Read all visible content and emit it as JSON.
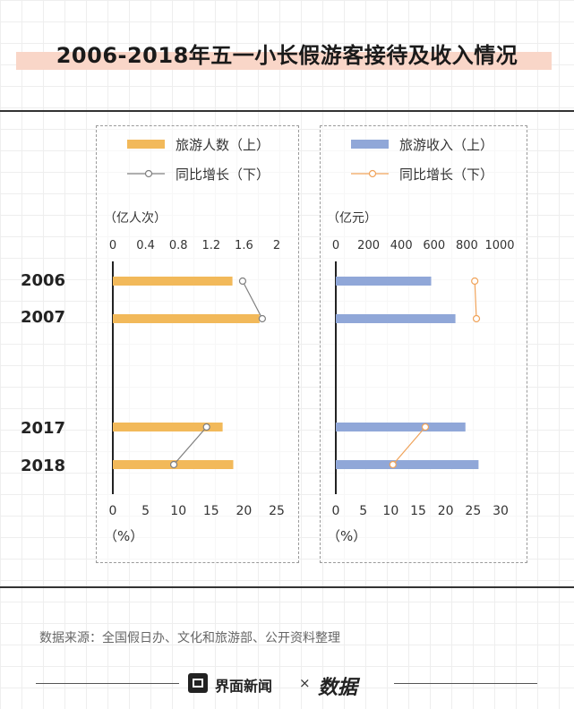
{
  "title": "2006-2018年五一小长假游客接待及收入情况",
  "source": "数据来源：全国假日办、文化和旅游部、公开资料整理",
  "footer": {
    "brand": "界面新闻",
    "times": "×",
    "partner": "数据"
  },
  "chart_data": [
    {
      "type": "bar",
      "categories": [
        "2006",
        "2007",
        "2017",
        "2018"
      ],
      "bar_series": {
        "name": "旅游人数（上）",
        "values": [
          1.46,
          1.79,
          1.34,
          1.47
        ],
        "color": "#f2b95a"
      },
      "line_series": {
        "name": "同比增长（下）",
        "values": [
          19.8,
          22.8,
          14.3,
          9.3
        ],
        "color": "#7f7f7f"
      },
      "top_axis": {
        "label": "（亿人次）",
        "ticks": [
          "0",
          "0.4",
          "0.8",
          "1.2",
          "1.6",
          "2"
        ],
        "range": [
          0,
          2
        ]
      },
      "bottom_axis": {
        "label": "（%）",
        "ticks": [
          "0",
          "5",
          "10",
          "15",
          "20",
          "25"
        ],
        "range": [
          0,
          25
        ]
      }
    },
    {
      "type": "bar",
      "categories": [
        "2006",
        "2007",
        "2017",
        "2018"
      ],
      "bar_series": {
        "name": "旅游收入（上）",
        "values": [
          582,
          730,
          791,
          871
        ],
        "color": "#90a7d8"
      },
      "line_series": {
        "name": "同比增长（下）",
        "values": [
          25.3,
          25.6,
          16.3,
          10.4
        ],
        "color": "#f0a35a"
      },
      "top_axis": {
        "label": "（亿元）",
        "ticks": [
          "0",
          "200",
          "400",
          "600",
          "800",
          "1000"
        ],
        "range": [
          0,
          1000
        ]
      },
      "bottom_axis": {
        "label": "（%）",
        "ticks": [
          "0",
          "5",
          "10",
          "15",
          "20",
          "25",
          "30"
        ],
        "range": [
          0,
          30
        ]
      }
    }
  ]
}
